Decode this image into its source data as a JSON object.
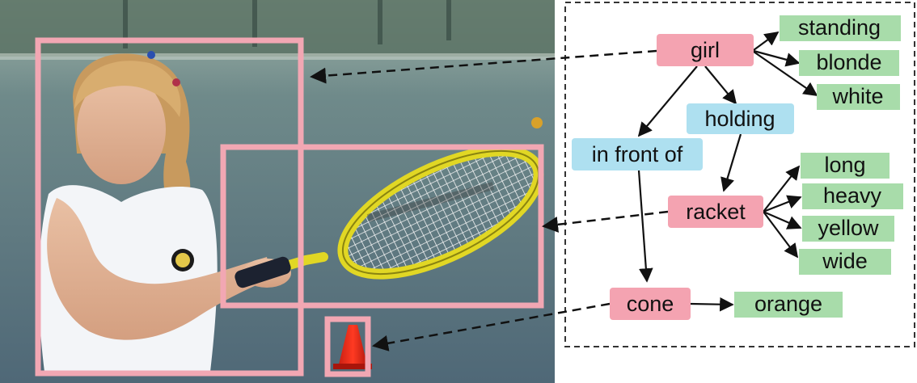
{
  "colors": {
    "object_box": "#f2a7b3",
    "object_node": "#f4a3b1",
    "relation_node": "#aee0f0",
    "attribute_node": "#a8dcaa",
    "edge": "#111111",
    "panel_border": "#333333",
    "photo_court": "#56707f",
    "photo_fence": "#2f4a45"
  },
  "graph": {
    "objects": [
      {
        "id": "girl",
        "label": "girl"
      },
      {
        "id": "racket",
        "label": "racket"
      },
      {
        "id": "cone",
        "label": "cone"
      }
    ],
    "relations": [
      {
        "id": "holding",
        "label": "holding",
        "subject": "girl",
        "object": "racket"
      },
      {
        "id": "in_front_of",
        "label": "in front of",
        "subject": "girl",
        "object": "cone"
      }
    ],
    "attributes": [
      {
        "id": "standing",
        "label": "standing",
        "of": "girl"
      },
      {
        "id": "blonde",
        "label": "blonde",
        "of": "girl"
      },
      {
        "id": "white",
        "label": "white",
        "of": "girl"
      },
      {
        "id": "long",
        "label": "long",
        "of": "racket"
      },
      {
        "id": "heavy",
        "label": "heavy",
        "of": "racket"
      },
      {
        "id": "yellow",
        "label": "yellow",
        "of": "racket"
      },
      {
        "id": "wide",
        "label": "wide",
        "of": "racket"
      },
      {
        "id": "orange",
        "label": "orange",
        "of": "cone"
      }
    ]
  },
  "photo": {
    "regions": [
      {
        "object": "girl"
      },
      {
        "object": "racket"
      },
      {
        "object": "cone"
      }
    ]
  }
}
